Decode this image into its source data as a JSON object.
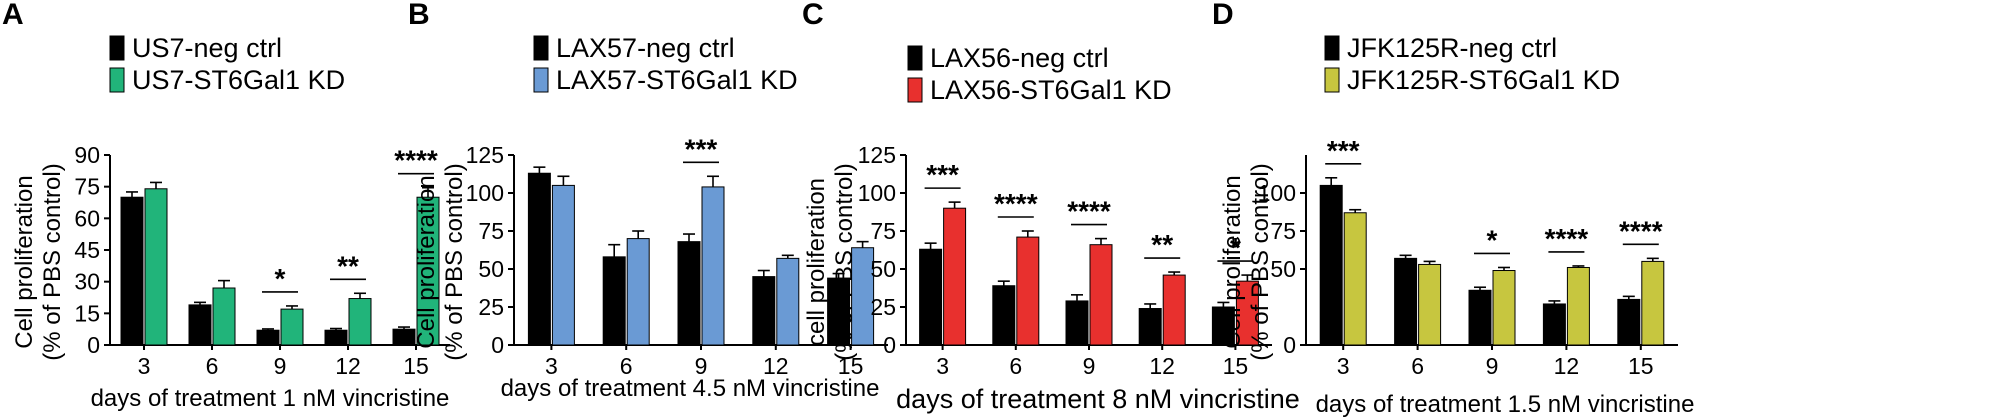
{
  "chart_data": [
    {
      "type": "bar",
      "panel": "A",
      "categories": [
        "3",
        "6",
        "9",
        "12",
        "15"
      ],
      "series": [
        {
          "name": "US7-neg ctrl",
          "color": "#000000",
          "values": [
            70,
            19,
            7,
            7,
            7.5
          ],
          "errors": [
            2.5,
            1.2,
            0.6,
            0.8,
            1
          ]
        },
        {
          "name": "US7-ST6Gal1 KD",
          "color": "#21b47a",
          "values": [
            74,
            27,
            17,
            22,
            70
          ],
          "errors": [
            3,
            3.5,
            1.5,
            2.5,
            4.5
          ]
        }
      ],
      "significance": [
        {
          "category_index": 2,
          "label": "*"
        },
        {
          "category_index": 3,
          "label": "**"
        },
        {
          "category_index": 4,
          "label": "****"
        }
      ],
      "title": "",
      "xlabel": "days of treatment 1 nM vincristine",
      "ylabel": "Cell proliferation",
      "ylabel2": "(% of PBS control)",
      "ylim": [
        0,
        90
      ],
      "yticks": [
        0,
        15,
        30,
        45,
        60,
        75,
        90
      ],
      "legend_position": "top"
    },
    {
      "type": "bar",
      "panel": "B",
      "categories": [
        "3",
        "6",
        "9",
        "12",
        "15"
      ],
      "series": [
        {
          "name": "LAX57-neg ctrl",
          "color": "#000000",
          "values": [
            113,
            58,
            68,
            45,
            44
          ],
          "errors": [
            4,
            8,
            5,
            4,
            3
          ]
        },
        {
          "name": "LAX57-ST6Gal1 KD",
          "color": "#6a9ad4",
          "values": [
            105,
            70,
            104,
            57,
            64
          ],
          "errors": [
            6,
            5,
            7,
            2,
            4
          ]
        }
      ],
      "significance": [
        {
          "category_index": 2,
          "label": "***"
        }
      ],
      "title": "",
      "xlabel": "days of treatment 4.5 nM vincristine",
      "ylabel": "Cell proliferation",
      "ylabel2": "(% of PBS control)",
      "ylim": [
        0,
        125
      ],
      "yticks": [
        0,
        25,
        50,
        75,
        100,
        125
      ],
      "legend_position": "top"
    },
    {
      "type": "bar",
      "panel": "C",
      "categories": [
        "3",
        "6",
        "9",
        "12",
        "15"
      ],
      "series": [
        {
          "name": "LAX56-neg ctrl",
          "color": "#000000",
          "values": [
            63,
            39,
            29,
            24,
            25
          ],
          "errors": [
            4,
            3,
            4,
            3,
            3
          ]
        },
        {
          "name": "LAX56-ST6Gal1 KD",
          "color": "#e8302e",
          "values": [
            90,
            71,
            66,
            46,
            42
          ],
          "errors": [
            4,
            4,
            4,
            2,
            4
          ]
        }
      ],
      "significance": [
        {
          "category_index": 0,
          "label": "***"
        },
        {
          "category_index": 1,
          "label": "****"
        },
        {
          "category_index": 2,
          "label": "****"
        },
        {
          "category_index": 3,
          "label": "**"
        },
        {
          "category_index": 4,
          "label": "*"
        }
      ],
      "title": "",
      "xlabel": "days of treatment 8 nM vincristine",
      "ylabel": "cell proliferation",
      "ylabel2": "(% of PBS control)",
      "ylim": [
        0,
        125
      ],
      "yticks": [
        0,
        25,
        50,
        75,
        100,
        125
      ],
      "legend_position": "top"
    },
    {
      "type": "bar",
      "panel": "D",
      "categories": [
        "3",
        "6",
        "9",
        "12",
        "15"
      ],
      "series": [
        {
          "name": "JFK125R-neg ctrl",
          "color": "#000000",
          "values": [
            105,
            57,
            36,
            27,
            30
          ],
          "errors": [
            5,
            2,
            2,
            2,
            2
          ]
        },
        {
          "name": "JFK125R-ST6Gal1 KD",
          "color": "#c7c63f",
          "values": [
            87,
            53,
            49,
            51,
            55
          ],
          "errors": [
            2,
            2,
            2,
            1,
            2
          ]
        }
      ],
      "significance": [
        {
          "category_index": 0,
          "label": "***"
        },
        {
          "category_index": 2,
          "label": "*"
        },
        {
          "category_index": 3,
          "label": "****"
        },
        {
          "category_index": 4,
          "label": "****"
        }
      ],
      "title": "",
      "xlabel": "days of treatment 1.5 nM vincristine",
      "ylabel": "Cell proliferation",
      "ylabel2": "(% of PBS control)",
      "ylim": [
        0,
        125
      ],
      "yticks": [
        0,
        50,
        75,
        100
      ],
      "legend_position": "top"
    }
  ]
}
